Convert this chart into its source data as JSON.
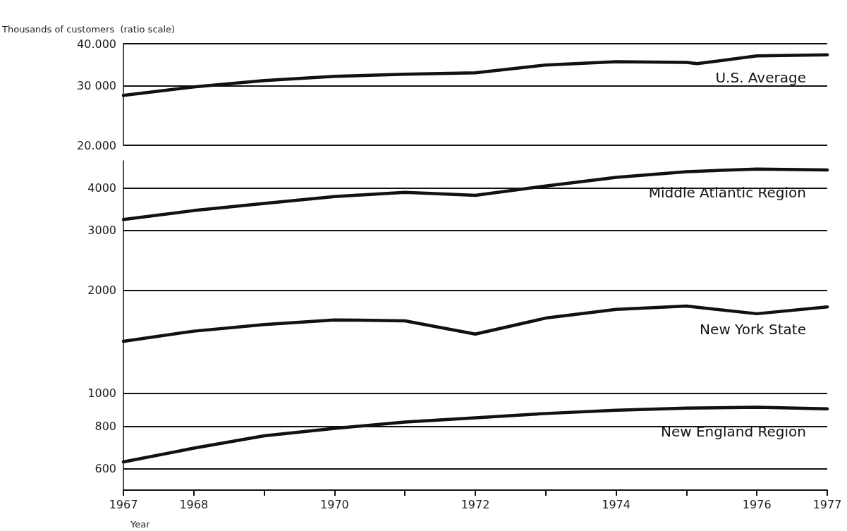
{
  "chart_data": [
    {
      "type": "line",
      "ylabel": "Thousands of customers  (ratio scale)",
      "log": "y",
      "grid": "y",
      "legend": false,
      "tick_labels": "y",
      "marker": "none",
      "line_style": "solid",
      "xlim": [
        1967,
        1977
      ],
      "ylim": [
        20000,
        40000
      ],
      "yticks": [
        {
          "value": 20000,
          "label": "20.000"
        },
        {
          "value": 30000,
          "label": "30 000"
        },
        {
          "value": 40000,
          "label": "40.000"
        }
      ],
      "x": [
        1967,
        1968,
        1969,
        1970,
        1971,
        1972,
        1973,
        1974,
        1975,
        1975.15,
        1976,
        1977
      ],
      "series": [
        {
          "name": "U.S. Average",
          "color": "#111111",
          "values": [
            28100,
            29800,
            31100,
            32000,
            32500,
            32800,
            34600,
            35400,
            35200,
            34900,
            36800,
            37100
          ]
        }
      ]
    },
    {
      "type": "line",
      "xlabel": "Year",
      "log": "y",
      "grid": "y",
      "legend": false,
      "marker": "none",
      "line_style": "solid",
      "xlim": [
        1967,
        1977
      ],
      "ylim": [
        520,
        4800
      ],
      "xticks": [
        1967,
        1968,
        {
          "value": 1969,
          "label": null
        },
        1970,
        {
          "value": 1971,
          "label": null
        },
        1972,
        {
          "value": 1973,
          "label": null
        },
        1974,
        {
          "value": 1975,
          "label": null
        },
        1976,
        1977
      ],
      "yticks": [
        600,
        800,
        1000,
        2000,
        3000,
        4000
      ],
      "x": [
        1967,
        1968,
        1969,
        1970,
        1971,
        1972,
        1973,
        1974,
        1975,
        1976,
        1977
      ],
      "series": [
        {
          "name": "Middle Atlantic Region",
          "color": "#111111",
          "values": [
            3230,
            3430,
            3600,
            3770,
            3880,
            3800,
            4050,
            4290,
            4460,
            4540,
            4510
          ]
        },
        {
          "name": "New York State",
          "color": "#111111",
          "values": [
            1420,
            1520,
            1590,
            1640,
            1630,
            1490,
            1660,
            1760,
            1800,
            1710,
            1790
          ]
        },
        {
          "name": "New England Region",
          "color": "#111111",
          "values": [
            629,
            690,
            750,
            789,
            823,
            847,
            872,
            891,
            904,
            910,
            900
          ]
        }
      ]
    }
  ]
}
